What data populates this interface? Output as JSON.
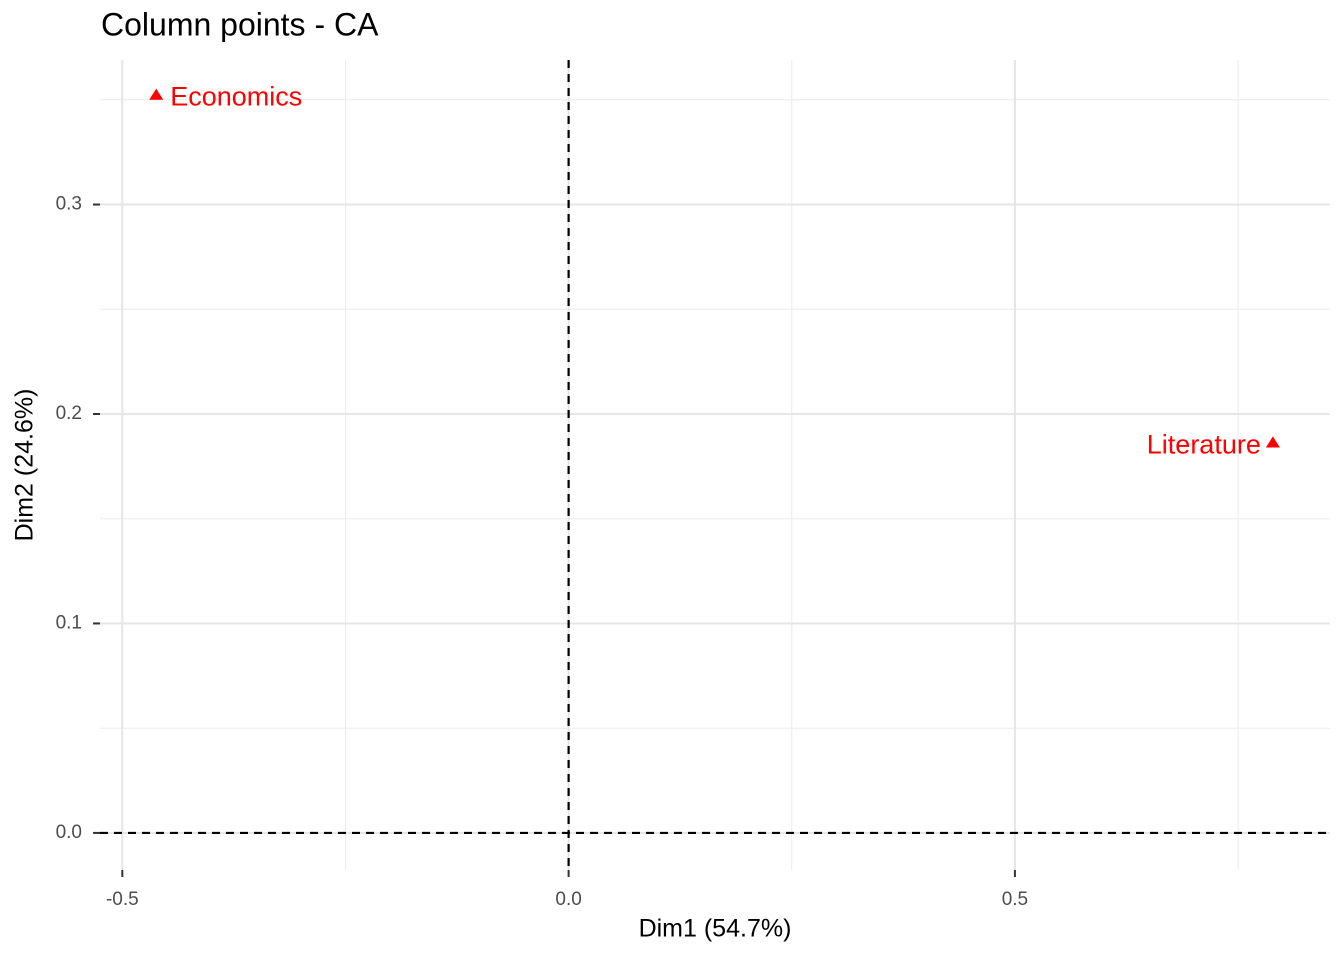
{
  "chart_data": {
    "type": "scatter",
    "title": "Column points - CA",
    "x_label": "Dim1 (54.7%)",
    "y_label": "Dim2 (24.6%)",
    "labels": [
      "Economics",
      "Literature"
    ],
    "x": [
      -0.462,
      0.789
    ],
    "y": [
      0.352,
      0.186
    ],
    "color": "#ff0000",
    "marker": "triangle",
    "xlim": [
      -0.525,
      0.853
    ],
    "ylim": [
      -0.0177,
      0.369
    ],
    "xticks": [
      -0.5,
      {
        "value": 0,
        "label": "0.0"
      },
      0.5
    ],
    "yticks": [
      {
        "value": 0,
        "label": "0.0"
      },
      0.1,
      0.2,
      0.3
    ],
    "x_minor_ticks": [
      -0.25,
      0.25,
      0.75
    ],
    "y_minor_ticks": [
      0.05,
      0.15,
      0.25,
      0.35
    ],
    "reference_lines": {
      "x": 0,
      "y": 0
    },
    "grid": true
  }
}
